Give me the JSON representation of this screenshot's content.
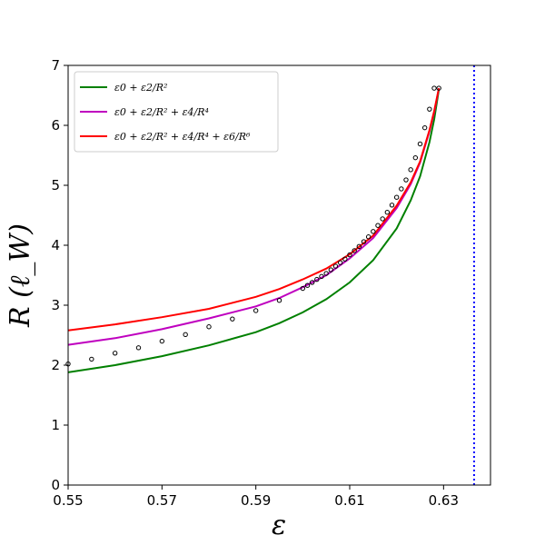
{
  "chart_data": {
    "type": "line",
    "xlabel": "ε",
    "ylabel": "R (ℓ_W)",
    "xlim": [
      0.55,
      0.64
    ],
    "ylim": [
      0,
      7
    ],
    "xticks": [
      0.55,
      0.57,
      0.59,
      0.61,
      0.63
    ],
    "xtick_labels": [
      "0.55",
      "0.57",
      "0.59",
      "0.61",
      "0.63"
    ],
    "yticks": [
      0,
      1,
      2,
      3,
      4,
      5,
      6,
      7
    ],
    "ytick_labels": [
      "0",
      "1",
      "2",
      "3",
      "4",
      "5",
      "6",
      "7"
    ],
    "grid": false,
    "legend_position": "top-left",
    "vertical_line": {
      "x": 0.6365,
      "color": "#0000ff",
      "style": "dotted"
    },
    "series": [
      {
        "name": "ε0 + ε2/R²",
        "color": "#008000",
        "x": [
          0.55,
          0.56,
          0.57,
          0.58,
          0.59,
          0.595,
          0.6,
          0.605,
          0.61,
          0.615,
          0.62,
          0.623,
          0.625,
          0.627,
          0.628,
          0.629
        ],
        "y": [
          1.88,
          2.0,
          2.15,
          2.33,
          2.55,
          2.7,
          2.88,
          3.1,
          3.38,
          3.75,
          4.28,
          4.75,
          5.15,
          5.72,
          6.1,
          6.6
        ]
      },
      {
        "name": "ε0 + ε2/R² + ε4/R⁴",
        "color": "#bf00bf",
        "x": [
          0.55,
          0.56,
          0.57,
          0.58,
          0.59,
          0.595,
          0.6,
          0.605,
          0.61,
          0.615,
          0.62,
          0.623,
          0.625,
          0.627,
          0.628,
          0.629
        ],
        "y": [
          2.34,
          2.45,
          2.6,
          2.78,
          2.98,
          3.12,
          3.3,
          3.5,
          3.78,
          4.12,
          4.62,
          5.02,
          5.38,
          5.9,
          6.22,
          6.62
        ]
      },
      {
        "name": "ε0 + ε2/R² + ε4/R⁴ + ε6/R⁶",
        "color": "#ff0000",
        "x": [
          0.55,
          0.56,
          0.57,
          0.58,
          0.59,
          0.595,
          0.6,
          0.605,
          0.61,
          0.615,
          0.62,
          0.623,
          0.625,
          0.627,
          0.628,
          0.629
        ],
        "y": [
          2.58,
          2.68,
          2.8,
          2.94,
          3.14,
          3.27,
          3.43,
          3.61,
          3.85,
          4.16,
          4.66,
          5.05,
          5.4,
          5.92,
          6.24,
          6.62
        ]
      },
      {
        "name": "",
        "type": "scatter",
        "color": "#000000",
        "x": [
          0.55,
          0.555,
          0.56,
          0.565,
          0.57,
          0.575,
          0.58,
          0.585,
          0.59,
          0.595,
          0.6,
          0.601,
          0.602,
          0.603,
          0.604,
          0.605,
          0.606,
          0.607,
          0.608,
          0.609,
          0.61,
          0.611,
          0.612,
          0.613,
          0.614,
          0.615,
          0.616,
          0.617,
          0.618,
          0.619,
          0.62,
          0.621,
          0.622,
          0.623,
          0.624,
          0.625,
          0.626,
          0.627,
          0.628,
          0.629
        ],
        "y": [
          2.02,
          2.1,
          2.2,
          2.29,
          2.4,
          2.51,
          2.64,
          2.77,
          2.91,
          3.08,
          3.28,
          3.33,
          3.38,
          3.43,
          3.48,
          3.53,
          3.59,
          3.65,
          3.71,
          3.77,
          3.84,
          3.91,
          3.98,
          4.06,
          4.14,
          4.23,
          4.33,
          4.44,
          4.55,
          4.67,
          4.8,
          4.94,
          5.09,
          5.26,
          5.46,
          5.69,
          5.96,
          6.27,
          6.62,
          6.62
        ]
      }
    ]
  }
}
